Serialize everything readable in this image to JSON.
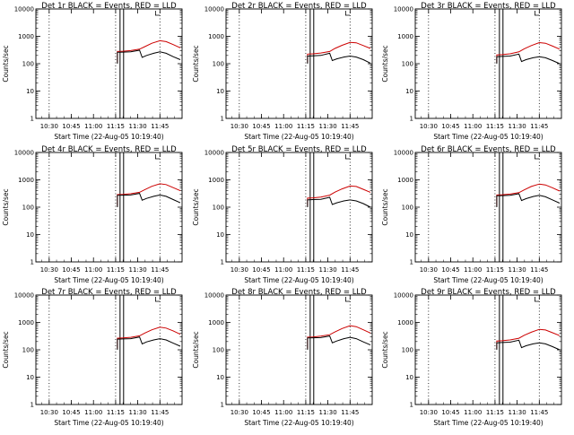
{
  "page": {
    "background": "#ffffff"
  },
  "style": {
    "events_color": "#000000",
    "lld_color": "#cc0000"
  },
  "chart_data": [
    {
      "type": "line",
      "title": "Det 1r BLACK = Events, RED = LLD",
      "xlabel": "Start Time (22-Aug-05 10:19:40)",
      "ylabel": "Counts/sec",
      "xlim": [
        10.35,
        12.0
      ],
      "x_ticks": [
        10.5,
        10.75,
        11.0,
        11.25,
        11.5,
        11.75
      ],
      "x_tick_labels": [
        "10:30",
        "10:45",
        "11:00",
        "11:15",
        "11:30",
        "11:45"
      ],
      "yscale": "log",
      "ylim": [
        1,
        10000
      ],
      "y_ticks": [
        1,
        10,
        100,
        1000,
        10000
      ],
      "y_tick_labels": [
        "1",
        "10",
        "100",
        "1000",
        "10000"
      ],
      "dotted_vlines": [
        10.5,
        11.25,
        11.75
      ],
      "solid_vlines": [
        11.3,
        11.34
      ],
      "events": [
        [
          11.27,
          100
        ],
        [
          11.27,
          260
        ],
        [
          11.33,
          265
        ],
        [
          11.42,
          270
        ],
        [
          11.52,
          310
        ],
        [
          11.55,
          170
        ],
        [
          11.6,
          200
        ],
        [
          11.68,
          240
        ],
        [
          11.75,
          270
        ],
        [
          11.82,
          240
        ],
        [
          11.9,
          180
        ],
        [
          11.98,
          140
        ]
      ],
      "lld": [
        [
          11.27,
          110
        ],
        [
          11.27,
          280
        ],
        [
          11.33,
          285
        ],
        [
          11.42,
          300
        ],
        [
          11.52,
          340
        ],
        [
          11.58,
          420
        ],
        [
          11.66,
          560
        ],
        [
          11.75,
          690
        ],
        [
          11.82,
          640
        ],
        [
          11.9,
          500
        ],
        [
          11.98,
          380
        ]
      ]
    },
    {
      "type": "line",
      "title": "Det 2r BLACK = Events, RED = LLD",
      "xlabel": "Start Time (22-Aug-05 10:19:40)",
      "ylabel": "Counts/sec",
      "xlim": [
        10.35,
        12.0
      ],
      "x_ticks": [
        10.5,
        10.75,
        11.0,
        11.25,
        11.5,
        11.75
      ],
      "x_tick_labels": [
        "10:30",
        "10:45",
        "11:00",
        "11:15",
        "11:30",
        "11:45"
      ],
      "yscale": "log",
      "ylim": [
        1,
        10000
      ],
      "y_ticks": [
        1,
        10,
        100,
        1000,
        10000
      ],
      "y_tick_labels": [
        "1",
        "10",
        "100",
        "1000",
        "10000"
      ],
      "dotted_vlines": [
        10.5,
        11.25,
        11.75
      ],
      "solid_vlines": [
        11.3,
        11.34
      ],
      "events": [
        [
          11.27,
          100
        ],
        [
          11.27,
          190
        ],
        [
          11.33,
          195
        ],
        [
          11.42,
          200
        ],
        [
          11.52,
          240
        ],
        [
          11.55,
          130
        ],
        [
          11.6,
          150
        ],
        [
          11.68,
          175
        ],
        [
          11.75,
          190
        ],
        [
          11.82,
          175
        ],
        [
          11.9,
          140
        ],
        [
          11.98,
          105
        ]
      ],
      "lld": [
        [
          11.27,
          110
        ],
        [
          11.27,
          225
        ],
        [
          11.33,
          230
        ],
        [
          11.42,
          245
        ],
        [
          11.52,
          280
        ],
        [
          11.58,
          360
        ],
        [
          11.66,
          470
        ],
        [
          11.75,
          600
        ],
        [
          11.82,
          580
        ],
        [
          11.9,
          460
        ],
        [
          11.98,
          360
        ]
      ]
    },
    {
      "type": "line",
      "title": "Det 3r BLACK = Events, RED = LLD",
      "xlabel": "Start Time (22-Aug-05 10:19:40)",
      "ylabel": "Counts/sec",
      "xlim": [
        10.35,
        12.0
      ],
      "x_ticks": [
        10.5,
        10.75,
        11.0,
        11.25,
        11.5,
        11.75
      ],
      "x_tick_labels": [
        "10:30",
        "10:45",
        "11:00",
        "11:15",
        "11:30",
        "11:45"
      ],
      "yscale": "log",
      "ylim": [
        1,
        10000
      ],
      "y_ticks": [
        1,
        10,
        100,
        1000,
        10000
      ],
      "y_tick_labels": [
        "1",
        "10",
        "100",
        "1000",
        "10000"
      ],
      "dotted_vlines": [
        10.5,
        11.25,
        11.75
      ],
      "solid_vlines": [
        11.3,
        11.34
      ],
      "events": [
        [
          11.27,
          100
        ],
        [
          11.27,
          180
        ],
        [
          11.33,
          185
        ],
        [
          11.42,
          190
        ],
        [
          11.52,
          225
        ],
        [
          11.55,
          120
        ],
        [
          11.6,
          140
        ],
        [
          11.68,
          165
        ],
        [
          11.75,
          180
        ],
        [
          11.82,
          165
        ],
        [
          11.9,
          130
        ],
        [
          11.98,
          100
        ]
      ],
      "lld": [
        [
          11.27,
          110
        ],
        [
          11.27,
          210
        ],
        [
          11.33,
          215
        ],
        [
          11.42,
          230
        ],
        [
          11.52,
          270
        ],
        [
          11.58,
          350
        ],
        [
          11.66,
          460
        ],
        [
          11.75,
          590
        ],
        [
          11.82,
          560
        ],
        [
          11.9,
          440
        ],
        [
          11.98,
          340
        ]
      ]
    },
    {
      "type": "line",
      "title": "Det 4r BLACK = Events, RED = LLD",
      "xlabel": "Start Time (22-Aug-05 10:19:40)",
      "ylabel": "Counts/sec",
      "xlim": [
        10.35,
        12.0
      ],
      "x_ticks": [
        10.5,
        10.75,
        11.0,
        11.25,
        11.5,
        11.75
      ],
      "x_tick_labels": [
        "10:30",
        "10:45",
        "11:00",
        "11:15",
        "11:30",
        "11:45"
      ],
      "yscale": "log",
      "ylim": [
        1,
        10000
      ],
      "y_ticks": [
        1,
        10,
        100,
        1000,
        10000
      ],
      "y_tick_labels": [
        "1",
        "10",
        "100",
        "1000",
        "10000"
      ],
      "dotted_vlines": [
        10.5,
        11.25,
        11.75
      ],
      "solid_vlines": [
        11.3,
        11.34
      ],
      "events": [
        [
          11.27,
          100
        ],
        [
          11.27,
          270
        ],
        [
          11.33,
          275
        ],
        [
          11.42,
          280
        ],
        [
          11.52,
          320
        ],
        [
          11.55,
          180
        ],
        [
          11.6,
          210
        ],
        [
          11.68,
          250
        ],
        [
          11.75,
          280
        ],
        [
          11.82,
          250
        ],
        [
          11.9,
          190
        ],
        [
          11.98,
          145
        ]
      ],
      "lld": [
        [
          11.27,
          110
        ],
        [
          11.27,
          290
        ],
        [
          11.33,
          295
        ],
        [
          11.42,
          310
        ],
        [
          11.52,
          350
        ],
        [
          11.58,
          440
        ],
        [
          11.66,
          580
        ],
        [
          11.75,
          720
        ],
        [
          11.82,
          670
        ],
        [
          11.9,
          520
        ],
        [
          11.98,
          400
        ]
      ]
    },
    {
      "type": "line",
      "title": "Det 5r BLACK = Events, RED = LLD",
      "xlabel": "Start Time (22-Aug-05 10:19:40)",
      "ylabel": "Counts/sec",
      "xlim": [
        10.35,
        12.0
      ],
      "x_ticks": [
        10.5,
        10.75,
        11.0,
        11.25,
        11.5,
        11.75
      ],
      "x_tick_labels": [
        "10:30",
        "10:45",
        "11:00",
        "11:15",
        "11:30",
        "11:45"
      ],
      "yscale": "log",
      "ylim": [
        1,
        10000
      ],
      "y_ticks": [
        1,
        10,
        100,
        1000,
        10000
      ],
      "y_tick_labels": [
        "1",
        "10",
        "100",
        "1000",
        "10000"
      ],
      "dotted_vlines": [
        10.5,
        11.25,
        11.75
      ],
      "solid_vlines": [
        11.3,
        11.34
      ],
      "events": [
        [
          11.27,
          100
        ],
        [
          11.27,
          185
        ],
        [
          11.33,
          190
        ],
        [
          11.42,
          195
        ],
        [
          11.52,
          230
        ],
        [
          11.55,
          125
        ],
        [
          11.6,
          145
        ],
        [
          11.68,
          170
        ],
        [
          11.75,
          185
        ],
        [
          11.82,
          170
        ],
        [
          11.9,
          135
        ],
        [
          11.98,
          100
        ]
      ],
      "lld": [
        [
          11.27,
          110
        ],
        [
          11.27,
          215
        ],
        [
          11.33,
          220
        ],
        [
          11.42,
          235
        ],
        [
          11.52,
          275
        ],
        [
          11.58,
          355
        ],
        [
          11.66,
          465
        ],
        [
          11.75,
          595
        ],
        [
          11.82,
          570
        ],
        [
          11.9,
          450
        ],
        [
          11.98,
          350
        ]
      ]
    },
    {
      "type": "line",
      "title": "Det 6r BLACK = Events, RED = LLD",
      "xlabel": "Start Time (22-Aug-05 10:19:40)",
      "ylabel": "Counts/sec",
      "xlim": [
        10.35,
        12.0
      ],
      "x_ticks": [
        10.5,
        10.75,
        11.0,
        11.25,
        11.5,
        11.75
      ],
      "x_tick_labels": [
        "10:30",
        "10:45",
        "11:00",
        "11:15",
        "11:30",
        "11:45"
      ],
      "yscale": "log",
      "ylim": [
        1,
        10000
      ],
      "y_ticks": [
        1,
        10,
        100,
        1000,
        10000
      ],
      "y_tick_labels": [
        "1",
        "10",
        "100",
        "1000",
        "10000"
      ],
      "dotted_vlines": [
        10.5,
        11.25,
        11.75
      ],
      "solid_vlines": [
        11.3,
        11.34
      ],
      "events": [
        [
          11.27,
          100
        ],
        [
          11.27,
          260
        ],
        [
          11.33,
          265
        ],
        [
          11.42,
          270
        ],
        [
          11.52,
          310
        ],
        [
          11.55,
          175
        ],
        [
          11.6,
          205
        ],
        [
          11.68,
          245
        ],
        [
          11.75,
          270
        ],
        [
          11.82,
          240
        ],
        [
          11.9,
          185
        ],
        [
          11.98,
          140
        ]
      ],
      "lld": [
        [
          11.27,
          110
        ],
        [
          11.27,
          280
        ],
        [
          11.33,
          285
        ],
        [
          11.42,
          300
        ],
        [
          11.52,
          340
        ],
        [
          11.58,
          430
        ],
        [
          11.66,
          570
        ],
        [
          11.75,
          700
        ],
        [
          11.82,
          650
        ],
        [
          11.9,
          510
        ],
        [
          11.98,
          390
        ]
      ]
    },
    {
      "type": "line",
      "title": "Det 7r BLACK = Events, RED = LLD",
      "xlabel": "Start Time (22-Aug-05 10:19:40)",
      "ylabel": "Counts/sec",
      "xlim": [
        10.35,
        12.0
      ],
      "x_ticks": [
        10.5,
        10.75,
        11.0,
        11.25,
        11.5,
        11.75
      ],
      "x_tick_labels": [
        "10:30",
        "10:45",
        "11:00",
        "11:15",
        "11:30",
        "11:45"
      ],
      "yscale": "log",
      "ylim": [
        1,
        10000
      ],
      "y_ticks": [
        1,
        10,
        100,
        1000,
        10000
      ],
      "y_tick_labels": [
        "1",
        "10",
        "100",
        "1000",
        "10000"
      ],
      "dotted_vlines": [
        10.5,
        11.25,
        11.75
      ],
      "solid_vlines": [
        11.3,
        11.34
      ],
      "events": [
        [
          11.27,
          100
        ],
        [
          11.27,
          245
        ],
        [
          11.33,
          250
        ],
        [
          11.42,
          255
        ],
        [
          11.52,
          295
        ],
        [
          11.55,
          165
        ],
        [
          11.6,
          195
        ],
        [
          11.68,
          230
        ],
        [
          11.75,
          255
        ],
        [
          11.82,
          230
        ],
        [
          11.9,
          175
        ],
        [
          11.98,
          135
        ]
      ],
      "lld": [
        [
          11.27,
          110
        ],
        [
          11.27,
          265
        ],
        [
          11.33,
          270
        ],
        [
          11.42,
          285
        ],
        [
          11.52,
          325
        ],
        [
          11.58,
          410
        ],
        [
          11.66,
          540
        ],
        [
          11.75,
          670
        ],
        [
          11.82,
          620
        ],
        [
          11.9,
          490
        ],
        [
          11.98,
          370
        ]
      ]
    },
    {
      "type": "line",
      "title": "Det 8r BLACK = Events, RED = LLD",
      "xlabel": "Start Time (22-Aug-05 10:19:40)",
      "ylabel": "Counts/sec",
      "xlim": [
        10.35,
        12.0
      ],
      "x_ticks": [
        10.5,
        10.75,
        11.0,
        11.25,
        11.5,
        11.75
      ],
      "x_tick_labels": [
        "10:30",
        "10:45",
        "11:00",
        "11:15",
        "11:30",
        "11:45"
      ],
      "yscale": "log",
      "ylim": [
        1,
        10000
      ],
      "y_ticks": [
        1,
        10,
        100,
        1000,
        10000
      ],
      "y_tick_labels": [
        "1",
        "10",
        "100",
        "1000",
        "10000"
      ],
      "dotted_vlines": [
        10.5,
        11.25,
        11.75
      ],
      "solid_vlines": [
        11.3,
        11.34
      ],
      "events": [
        [
          11.27,
          100
        ],
        [
          11.27,
          270
        ],
        [
          11.33,
          275
        ],
        [
          11.42,
          280
        ],
        [
          11.52,
          320
        ],
        [
          11.55,
          180
        ],
        [
          11.6,
          210
        ],
        [
          11.68,
          255
        ],
        [
          11.75,
          285
        ],
        [
          11.82,
          255
        ],
        [
          11.9,
          195
        ],
        [
          11.98,
          150
        ]
      ],
      "lld": [
        [
          11.27,
          110
        ],
        [
          11.27,
          290
        ],
        [
          11.33,
          295
        ],
        [
          11.42,
          315
        ],
        [
          11.52,
          355
        ],
        [
          11.58,
          450
        ],
        [
          11.66,
          600
        ],
        [
          11.75,
          760
        ],
        [
          11.82,
          700
        ],
        [
          11.9,
          540
        ],
        [
          11.98,
          410
        ]
      ]
    },
    {
      "type": "line",
      "title": "Det 9r BLACK = Events, RED = LLD",
      "xlabel": "Start Time (22-Aug-05 10:19:40)",
      "ylabel": "Counts/sec",
      "xlim": [
        10.35,
        12.0
      ],
      "x_ticks": [
        10.5,
        10.75,
        11.0,
        11.25,
        11.5,
        11.75
      ],
      "x_tick_labels": [
        "10:30",
        "10:45",
        "11:00",
        "11:15",
        "11:30",
        "11:45"
      ],
      "yscale": "log",
      "ylim": [
        1,
        10000
      ],
      "y_ticks": [
        1,
        10,
        100,
        1000,
        10000
      ],
      "y_tick_labels": [
        "1",
        "10",
        "100",
        "1000",
        "10000"
      ],
      "dotted_vlines": [
        10.5,
        11.25,
        11.75
      ],
      "solid_vlines": [
        11.3,
        11.34
      ],
      "events": [
        [
          11.27,
          100
        ],
        [
          11.27,
          180
        ],
        [
          11.33,
          185
        ],
        [
          11.42,
          190
        ],
        [
          11.52,
          225
        ],
        [
          11.55,
          120
        ],
        [
          11.6,
          140
        ],
        [
          11.68,
          165
        ],
        [
          11.75,
          180
        ],
        [
          11.82,
          165
        ],
        [
          11.9,
          130
        ],
        [
          11.98,
          100
        ]
      ],
      "lld": [
        [
          11.27,
          110
        ],
        [
          11.27,
          210
        ],
        [
          11.33,
          215
        ],
        [
          11.42,
          230
        ],
        [
          11.52,
          265
        ],
        [
          11.58,
          340
        ],
        [
          11.66,
          440
        ],
        [
          11.75,
          560
        ],
        [
          11.82,
          530
        ],
        [
          11.9,
          420
        ],
        [
          11.98,
          330
        ]
      ]
    }
  ]
}
